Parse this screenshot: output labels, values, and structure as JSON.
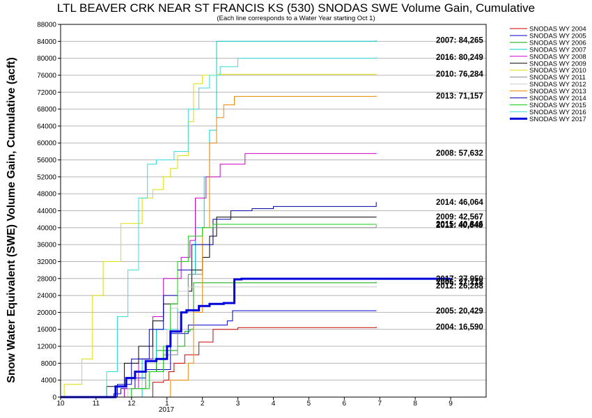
{
  "chart_data": {
    "type": "line",
    "title": "LTL BEAVER CRK NEAR ST FRANCIS KS (530) SNODAS SWE Volume Gain, Cumulative",
    "subtitle": "(Each line corresponds to a Water Year starting Oct 1)",
    "ylabel": "Snow Water Equivalent (SWE) Volume Gain, Cumulative (acft)",
    "xlabel": "",
    "x_tick_labels": [
      "10",
      "11",
      "12",
      "1",
      "2",
      "3",
      "4",
      "5",
      "6",
      "7",
      "8",
      "9"
    ],
    "x_year_label": "2017",
    "xlim": [
      0,
      12
    ],
    "ylim": [
      0,
      88000
    ],
    "y_ticks": [
      0,
      4000,
      8000,
      12000,
      16000,
      20000,
      24000,
      28000,
      32000,
      36000,
      40000,
      44000,
      48000,
      52000,
      56000,
      60000,
      64000,
      68000,
      72000,
      76000,
      80000,
      84000,
      88000
    ],
    "grid": "horizontal",
    "legend_position": "right",
    "series": [
      {
        "name": "SNODAS WY 2004",
        "color": "#cc0000",
        "width": 1,
        "end_label": "2004: 16,590",
        "x": [
          0,
          2.4,
          2.6,
          2.9,
          3.05,
          3.2,
          3.5,
          3.9,
          4.3,
          5.0,
          8.9
        ],
        "y": [
          0,
          0,
          3500,
          4000,
          6000,
          8000,
          10000,
          13000,
          16000,
          16400,
          16590
        ]
      },
      {
        "name": "SNODAS WY 2005",
        "color": "#0000cc",
        "width": 1,
        "end_label": "2005: 20,429",
        "x": [
          0,
          0.6,
          1.5,
          1.7,
          2.1,
          2.4,
          3.1,
          3.6,
          4.7,
          4.85,
          8.9
        ],
        "y": [
          0,
          0,
          800,
          2000,
          4500,
          6500,
          15000,
          17000,
          18000,
          20400,
          20429
        ]
      },
      {
        "name": "SNODAS WY 2006",
        "color": "#00aa00",
        "width": 1,
        "end_label": "2006: 27,218",
        "x": [
          0,
          1.1,
          1.8,
          2.4,
          2.7,
          3.3,
          3.5,
          3.65,
          3.75,
          8.9
        ],
        "y": [
          0,
          0,
          2000,
          6000,
          11000,
          12000,
          15500,
          16000,
          27000,
          27218
        ]
      },
      {
        "name": "SNODAS WY 2007",
        "color": "#00cccc",
        "width": 1,
        "end_label": "2007: 84,265",
        "x": [
          0,
          2.0,
          2.3,
          2.7,
          3.3,
          3.6,
          3.8,
          4.05,
          4.2,
          4.4,
          8.9
        ],
        "y": [
          0,
          0,
          9000,
          16000,
          25000,
          29000,
          40000,
          52000,
          63000,
          84000,
          84265
        ]
      },
      {
        "name": "SNODAS WY 2008",
        "color": "#cc00cc",
        "width": 1,
        "end_label": "2008: 57,632",
        "x": [
          0,
          1.0,
          1.8,
          2.2,
          2.6,
          2.9,
          3.4,
          3.65,
          3.8,
          4.1,
          4.5,
          5.2,
          8.9
        ],
        "y": [
          0,
          0,
          2000,
          9000,
          19000,
          28000,
          33000,
          37000,
          47000,
          52000,
          55000,
          57500,
          57632
        ]
      },
      {
        "name": "SNODAS WY 2009",
        "color": "#000000",
        "width": 1,
        "end_label": "2009: 42,567",
        "x": [
          0,
          0.65,
          1.3,
          1.8,
          2.2,
          2.6,
          2.9,
          3.3,
          3.7,
          4.0,
          4.2,
          4.4,
          8.9
        ],
        "y": [
          0,
          0,
          2500,
          8000,
          12000,
          18000,
          22000,
          25000,
          30000,
          33000,
          38000,
          42500,
          42567
        ]
      },
      {
        "name": "SNODAS WY 2010",
        "color": "#dddd00",
        "width": 1,
        "end_label": "2010: 76,284",
        "x": [
          0,
          0.1,
          0.6,
          0.9,
          1.2,
          1.7,
          2.3,
          2.6,
          2.9,
          3.1,
          3.3,
          3.6,
          3.75,
          4.0,
          4.4,
          8.9
        ],
        "y": [
          0,
          3000,
          9000,
          24000,
          32000,
          41000,
          47000,
          49000,
          52000,
          54000,
          57000,
          65000,
          74000,
          76000,
          76200,
          76284
        ]
      },
      {
        "name": "SNODAS WY 2011",
        "color": "#888888",
        "width": 1,
        "end_label": "2011: 40,648",
        "x": [
          0,
          1.5,
          2.0,
          2.4,
          2.9,
          3.3,
          3.6,
          4.0,
          4.3,
          8.9
        ],
        "y": [
          0,
          0,
          2000,
          6000,
          10000,
          20000,
          29000,
          36000,
          40000,
          40648
        ]
      },
      {
        "name": "SNODAS WY 2012",
        "color": "#cccccc",
        "width": 1,
        "end_label": "2012: 26,288",
        "x": [
          0,
          1.4,
          1.9,
          2.3,
          2.9,
          3.0,
          3.1,
          3.3,
          3.6,
          8.9
        ],
        "y": [
          0,
          0,
          2000,
          4000,
          9000,
          16000,
          21000,
          25000,
          26000,
          26288
        ]
      },
      {
        "name": "SNODAS WY 2013",
        "color": "#ee8800",
        "width": 1,
        "end_label": "2013: 71,157",
        "x": [
          0,
          2.4,
          3.1,
          3.6,
          3.75,
          4.0,
          4.2,
          4.4,
          4.6,
          4.9,
          8.9
        ],
        "y": [
          0,
          0,
          4000,
          8000,
          20000,
          40000,
          60000,
          66000,
          69000,
          71000,
          71157
        ]
      },
      {
        "name": "SNODAS WY 2014",
        "color": "#0000aa",
        "width": 1,
        "end_label": "2014: 46,064",
        "x": [
          0,
          0.9,
          1.6,
          2.0,
          2.5,
          2.9,
          3.3,
          3.7,
          4.3,
          4.8,
          5.4,
          6.0,
          8.9
        ],
        "y": [
          0,
          0,
          3000,
          9000,
          16000,
          24000,
          30000,
          36000,
          42000,
          44000,
          44500,
          45000,
          46064
        ]
      },
      {
        "name": "SNODAS WY 2015",
        "color": "#11cc11",
        "width": 1,
        "end_label": "2015: 40,846",
        "x": [
          0,
          1.5,
          2.0,
          2.5,
          2.9,
          3.1,
          3.3,
          3.6,
          4.0,
          4.3,
          8.9
        ],
        "y": [
          0,
          0,
          2000,
          6000,
          12000,
          22000,
          32000,
          38000,
          40000,
          40800,
          40846
        ]
      },
      {
        "name": "SNODAS WY 2016",
        "color": "#33dddd",
        "width": 1,
        "end_label": "2016: 80,249",
        "x": [
          0,
          1.0,
          1.3,
          1.6,
          1.9,
          2.2,
          2.45,
          2.7,
          3.2,
          3.6,
          3.9,
          4.2,
          4.5,
          5.0,
          8.9
        ],
        "y": [
          0,
          0,
          6000,
          19000,
          30000,
          47000,
          55000,
          56000,
          58000,
          68000,
          73000,
          76000,
          78000,
          80000,
          80249
        ]
      },
      {
        "name": "SNODAS WY 2017",
        "color": "#0000dd",
        "width": 3,
        "end_label": "2017: 27,950",
        "x": [
          0,
          1.45,
          1.55,
          1.85,
          2.1,
          2.4,
          2.7,
          3.0,
          3.1,
          3.4,
          3.55,
          3.9,
          4.2,
          4.6,
          4.9,
          5.1,
          5.35,
          5.5,
          6.2,
          6.7,
          7.0,
          8.0,
          8.3,
          8.9,
          9.3,
          9.7,
          10.2,
          10.6,
          11.0
        ],
        "y": [
          0,
          0,
          2500,
          4500,
          6000,
          8500,
          9000,
          12000,
          15500,
          20000,
          20500,
          21500,
          22000,
          22200,
          27800,
          27950,
          27950,
          27950,
          27950,
          27950,
          27950,
          27950,
          27950,
          27950,
          27950,
          27950,
          27950,
          27950,
          27950
        ]
      }
    ]
  }
}
